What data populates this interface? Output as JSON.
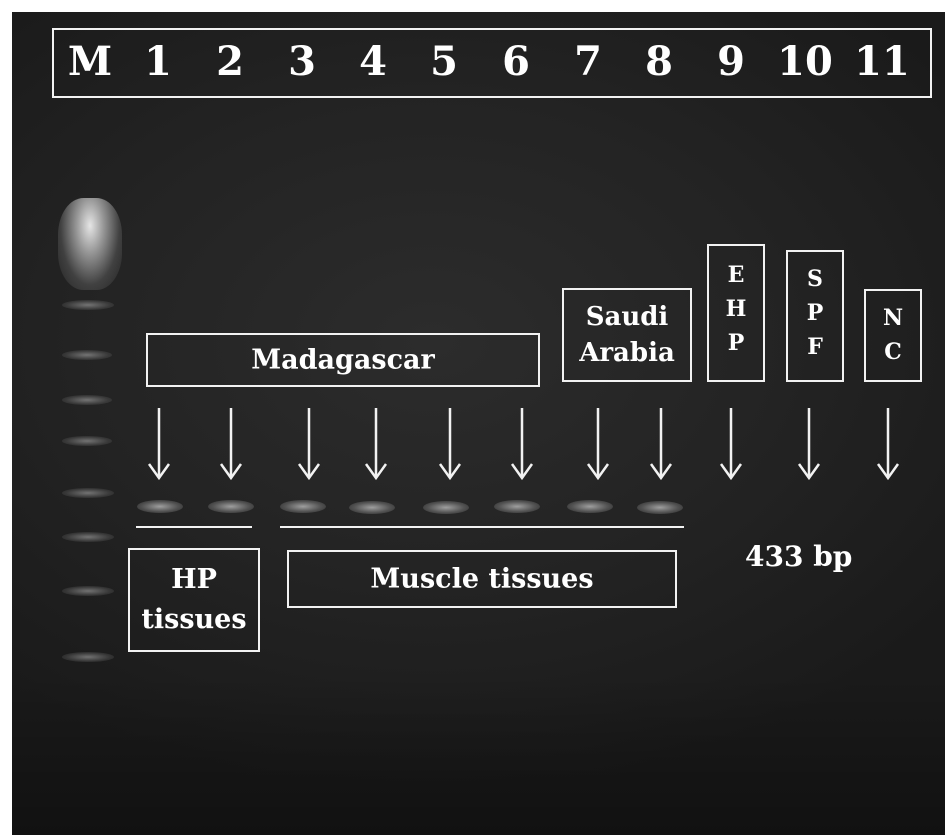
{
  "lanes": [
    "M",
    "1",
    "2",
    "3",
    "4",
    "5",
    "6",
    "7",
    "8",
    "9",
    "10",
    "11"
  ],
  "groups": {
    "madagascar": "Madagascar",
    "saudi_arabia_line1": "Saudi",
    "saudi_arabia_line2": "Arabia",
    "ehp": [
      "E",
      "H",
      "P"
    ],
    "spf": [
      "S",
      "P",
      "F"
    ],
    "nc": [
      "N",
      "C"
    ]
  },
  "tissues": {
    "hp_line1": "HP",
    "hp_line2": "tissues",
    "muscle": "Muscle tissues"
  },
  "band_size": "433 bp",
  "bands_present_lanes": [
    "1",
    "2",
    "3",
    "4",
    "5",
    "6",
    "7",
    "8"
  ]
}
